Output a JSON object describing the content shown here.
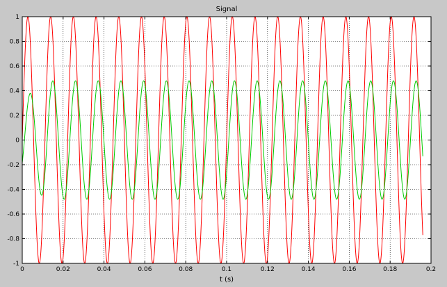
{
  "chart_data": {
    "type": "line",
    "title": "Signal",
    "xlabel": "t (s)",
    "ylabel": "",
    "xlim": [
      0,
      0.2
    ],
    "ylim": [
      -1,
      1
    ],
    "xticks": [
      0,
      0.02,
      0.04,
      0.06,
      0.08,
      0.1,
      0.12,
      0.14,
      0.16,
      0.18,
      0.2
    ],
    "xtick_labels": [
      "0",
      "0.02",
      "0.04",
      "0.06",
      "0.08",
      "0.1",
      "0.12",
      "0.14",
      "0.16",
      "0.18",
      "0.2"
    ],
    "yticks": [
      -1,
      -0.8,
      -0.6,
      -0.4,
      -0.2,
      0,
      0.2,
      0.4,
      0.6,
      0.8,
      1
    ],
    "ytick_labels": [
      "-1",
      "-0.8",
      "-0.6",
      "-0.4",
      "-0.2",
      "0",
      "0.2",
      "0.4",
      "0.6",
      "0.8",
      "1"
    ],
    "grid": true,
    "grid_style": "dotted",
    "series": [
      {
        "color": "#ff0000",
        "function": "sine",
        "amplitude": 1.0,
        "frequency_hz": 90,
        "phase_rad": 0,
        "t_start": 0,
        "t_end": 0.196
      },
      {
        "color": "#00cc00",
        "function": "sine",
        "amplitude": 0.48,
        "frequency_hz": 90,
        "phase_rad": -0.6,
        "t_start": 0,
        "t_end": 0.196,
        "start_amplitude": 0.33,
        "settling_time_s": 0.012
      }
    ],
    "colors": {
      "figure_background": "#c8c8c8",
      "plot_background": "#ffffff",
      "grid": "#000000",
      "axes": "#000000"
    }
  }
}
